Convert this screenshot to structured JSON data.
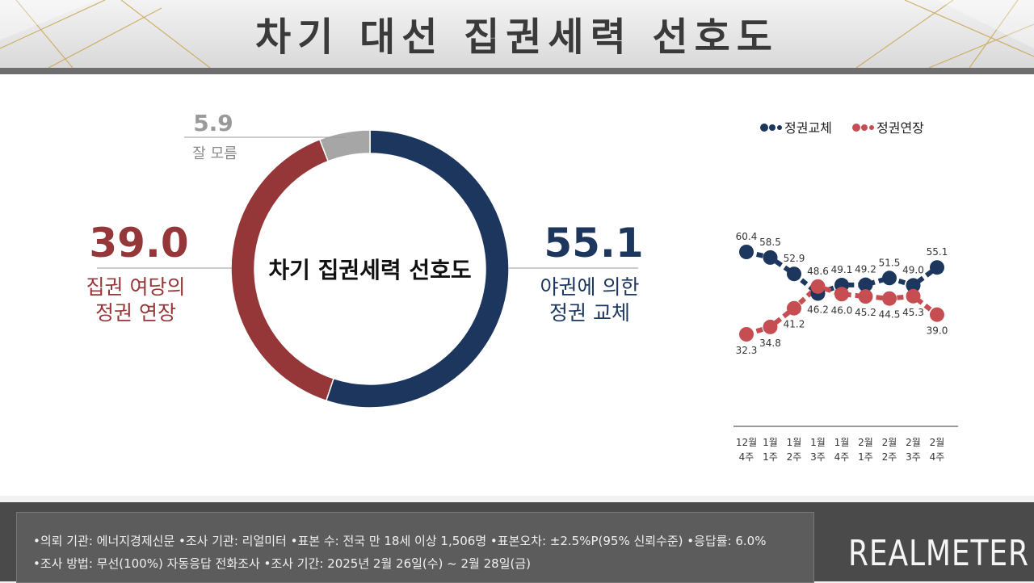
{
  "header": {
    "title": "차기 대선 집권세력 선호도"
  },
  "donut": {
    "center_label": "차기 집권세력 선호도",
    "segments": [
      {
        "label_lines": [
          "야권에 의한",
          "정권 교체"
        ],
        "value": 55.1,
        "value_text": "55.1",
        "color": "#1c365e"
      },
      {
        "label_lines": [
          "집권 여당의",
          "정권 연장"
        ],
        "value": 39.0,
        "value_text": "39.0",
        "color": "#953638"
      },
      {
        "label_lines": [
          "잘 모름"
        ],
        "value": 5.9,
        "value_text": "5.9",
        "color": "#a6a6a6"
      }
    ]
  },
  "chart_data": {
    "type": "line",
    "categories": [
      [
        "12월",
        "4주"
      ],
      [
        "1월",
        "1주"
      ],
      [
        "1월",
        "2주"
      ],
      [
        "1월",
        "3주"
      ],
      [
        "1월",
        "4주"
      ],
      [
        "2월",
        "1주"
      ],
      [
        "2월",
        "2주"
      ],
      [
        "2월",
        "3주"
      ],
      [
        "2월",
        "4주"
      ]
    ],
    "series": [
      {
        "name": "정권교체",
        "color": "#1c365e",
        "values": [
          60.4,
          58.5,
          52.9,
          46.2,
          49.1,
          49.2,
          51.5,
          49.0,
          55.1
        ],
        "labels": [
          "60.4",
          "58.5",
          "52.9",
          "46.2",
          "49.1",
          "49.2",
          "51.5",
          "49.0",
          "55.1"
        ]
      },
      {
        "name": "정권연장",
        "color": "#c64e52",
        "values": [
          32.3,
          34.8,
          41.2,
          48.6,
          46.0,
          45.2,
          44.5,
          45.3,
          39.0
        ],
        "labels": [
          "32.3",
          "34.8",
          "41.2",
          "48.6",
          "46.0",
          "45.2",
          "44.5",
          "45.3",
          "39.0"
        ]
      }
    ],
    "legend_position": "top",
    "ylim": [
      30,
      62
    ]
  },
  "footer": {
    "line1": "•의뢰 기관: 에너지경제신문 •조사 기관: 리얼미터 •표본 수: 전국 만 18세 이상 1,506명 •표본오차: ±2.5%P(95% 신뢰수준) •응답률: 6.0%",
    "line2": "•조사 방법: 무선(100%) 자동응답 전화조사 •조사 기간: 2025년 2월 26일(수) ~ 2월 28일(금)",
    "brand": "REALMETER"
  }
}
